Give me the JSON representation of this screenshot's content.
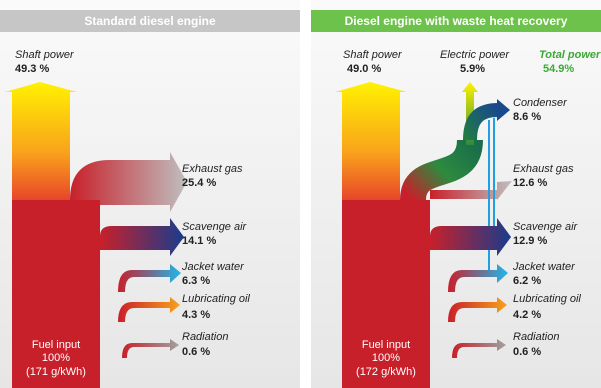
{
  "panels": [
    {
      "title": "Standard diesel engine",
      "shaft": {
        "label": "Shaft power",
        "value": "49.3 %"
      },
      "flows": [
        {
          "label": "Exhaust gas",
          "value": "25.4 %"
        },
        {
          "label": "Scavenge air",
          "value": "14.1 %"
        },
        {
          "label": "Jacket water",
          "value": "6.3 %"
        },
        {
          "label": "Lubricating oil",
          "value": "4.3 %"
        },
        {
          "label": "Radiation",
          "value": "0.6 %"
        }
      ],
      "fuel": {
        "label": "Fuel input",
        "value": "100%",
        "rate": "(171 g/kWh)"
      }
    },
    {
      "title": "Diesel engine with waste heat recovery",
      "shaft": {
        "label": "Shaft power",
        "value": "49.0 %"
      },
      "electric": {
        "label": "Electric power",
        "value": "5.9%"
      },
      "total": {
        "label": "Total power",
        "value": "54.9%"
      },
      "flows": [
        {
          "label": "Condenser",
          "value": "8.6 %"
        },
        {
          "label": "Exhaust gas",
          "value": "12.6 %"
        },
        {
          "label": "Scavenge air",
          "value": "12.9 %"
        },
        {
          "label": "Jacket water",
          "value": "6.2 %"
        },
        {
          "label": "Lubricating oil",
          "value": "4.2 %"
        },
        {
          "label": "Radiation",
          "value": "0.6 %"
        }
      ],
      "fuel": {
        "label": "Fuel input",
        "value": "100%",
        "rate": "(172 g/kWh)"
      }
    }
  ]
}
